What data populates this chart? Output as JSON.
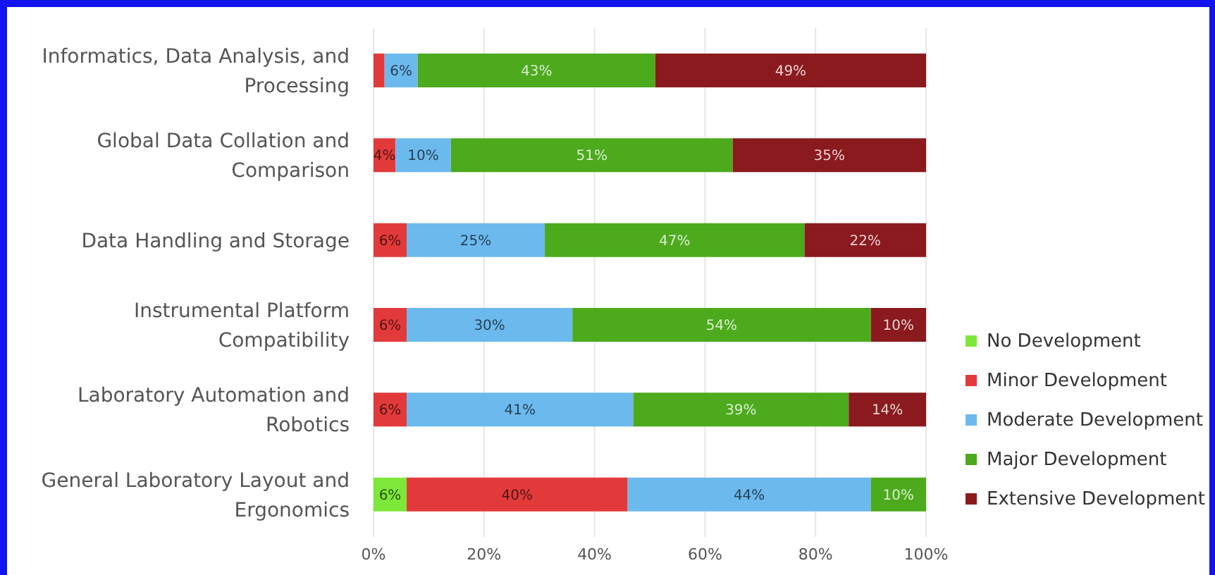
{
  "chart_data": {
    "type": "bar",
    "orientation": "horizontal",
    "stacked": true,
    "categories": [
      "Informatics, Data Analysis, and Processing",
      "Global Data Collation and Comparison",
      "Data Handling and Storage",
      "Instrumental Platform Compatibility",
      "Laboratory Automation and Robotics",
      "General Laboratory Layout and Ergonomics"
    ],
    "series": [
      {
        "name": "No Development",
        "color": "#7ee83a",
        "values": [
          null,
          null,
          null,
          null,
          null,
          6
        ],
        "value_labels": [
          null,
          null,
          null,
          null,
          null,
          "6%"
        ]
      },
      {
        "name": "Minor Development",
        "color": "#e23a3a",
        "values": [
          2,
          4,
          6,
          6,
          6,
          40
        ],
        "value_labels": [
          null,
          "4%",
          "6%",
          "6%",
          "6%",
          "40%"
        ]
      },
      {
        "name": "Moderate Development",
        "color": "#6cb9ee",
        "values": [
          6,
          10,
          25,
          30,
          41,
          44
        ],
        "value_labels": [
          "6%",
          "10%",
          "25%",
          "30%",
          "41%",
          "44%"
        ]
      },
      {
        "name": "Major Development",
        "color": "#4caa1c",
        "values": [
          43,
          51,
          47,
          54,
          39,
          10
        ],
        "value_labels": [
          "43%",
          "51%",
          "47%",
          "54%",
          "39%",
          "10%"
        ]
      },
      {
        "name": "Extensive Development",
        "color": "#8a1a1e",
        "values": [
          49,
          35,
          22,
          10,
          14,
          null
        ],
        "value_labels": [
          "49%",
          "35%",
          "22%",
          "10%",
          "14%",
          null
        ]
      }
    ],
    "xlim": [
      0,
      100
    ],
    "xticks": [
      {
        "value": 0,
        "label": "0%"
      },
      {
        "value": 20,
        "label": "20%"
      },
      {
        "value": 40,
        "label": "40%"
      },
      {
        "value": 60,
        "label": "60%"
      },
      {
        "value": 80,
        "label": "80%"
      },
      {
        "value": 100,
        "label": "100%"
      }
    ],
    "grid": "x",
    "legend": "bottom right"
  }
}
